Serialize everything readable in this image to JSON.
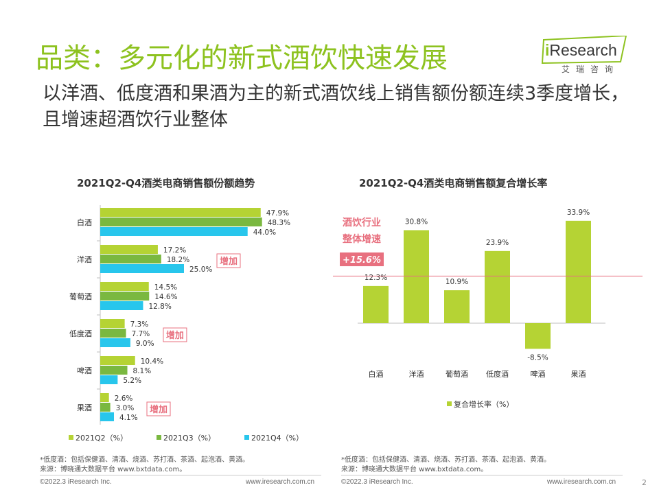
{
  "header": {
    "title": "品类：多元化的新式酒饮快速发展",
    "subtitle": "以洋酒、低度酒和果酒为主的新式酒饮线上销售额份额连续3季度增长，且增速超酒饮行业整体"
  },
  "logo": {
    "brand_i": "i",
    "brand_rest": "Research",
    "sub": "艾瑞咨询"
  },
  "chart_data": [
    {
      "type": "bar",
      "orientation": "horizontal",
      "title": "2021Q2-Q4酒类电商销售额份额趋势",
      "categories": [
        "白酒",
        "洋酒",
        "葡萄酒",
        "低度酒",
        "啤酒",
        "果酒"
      ],
      "series": [
        {
          "name": "2021Q2（%）",
          "color": "#b5d334",
          "values": [
            47.9,
            17.2,
            14.5,
            7.3,
            10.4,
            2.6
          ],
          "labels": [
            "47.9%",
            "17.2%",
            "14.5%",
            "7.3%",
            "10.4%",
            "2.6%"
          ]
        },
        {
          "name": "2021Q3（%）",
          "color": "#7ab840",
          "values": [
            48.3,
            18.2,
            14.6,
            7.7,
            8.1,
            3.0
          ],
          "labels": [
            "48.3%",
            "18.2%",
            "14.6%",
            "7.7%",
            "8.1%",
            "3.0%"
          ]
        },
        {
          "name": "2021Q4（%）",
          "color": "#28c6ec",
          "values": [
            44.0,
            25.0,
            12.8,
            9.0,
            5.2,
            4.1
          ],
          "labels": [
            "44.0%",
            "25.0%",
            "12.8%",
            "9.0%",
            "5.2%",
            "4.1%"
          ]
        }
      ],
      "xlim": [
        0,
        55
      ],
      "legend": "bottom",
      "annotations": [
        {
          "category": "洋酒",
          "text": "增加"
        },
        {
          "category": "低度酒",
          "text": "增加"
        },
        {
          "category": "果酒",
          "text": "增加"
        }
      ],
      "annotation_color": "#e8707f"
    },
    {
      "type": "bar",
      "title": "2021Q2-Q4酒类电商销售额复合增长率",
      "categories": [
        "白酒",
        "洋酒",
        "葡萄酒",
        "低度酒",
        "啤酒",
        "果酒"
      ],
      "series": [
        {
          "name": "复合增长率（%）",
          "color": "#b5d334",
          "values": [
            12.3,
            30.8,
            10.9,
            23.9,
            -8.5,
            33.9
          ],
          "labels": [
            "12.3%",
            "30.8%",
            "10.9%",
            "23.9%",
            "-8.5%",
            "33.9%"
          ]
        }
      ],
      "ylim": [
        -12,
        40
      ],
      "legend": "bottom",
      "reference_line": {
        "value": 15.6,
        "label_lines": [
          "酒饮行业",
          "整体增速"
        ],
        "value_label": "+15.6%",
        "color": "#e8707f"
      }
    }
  ],
  "footnotes": {
    "left": [
      "*低度酒：包括保健酒、清酒、烧酒、苏打酒、茶酒、起泡酒、黄酒。",
      "来源：博晓通大数据平台 www.bxtdata.com。"
    ],
    "right": [
      "*低度酒：包括保健酒、清酒、烧酒、苏打酒、茶酒、起泡酒、黄酒。",
      "来源：博晓通大数据平台 www.bxtdata.com。"
    ]
  },
  "footer": {
    "copyright_left": "©2022.3 iResearch Inc.",
    "url_left": "www.iresearch.com.cn",
    "copyright_right": "©2022.3 iResearch Inc.",
    "url_right": "www.iresearch.com.cn",
    "page": "2"
  }
}
